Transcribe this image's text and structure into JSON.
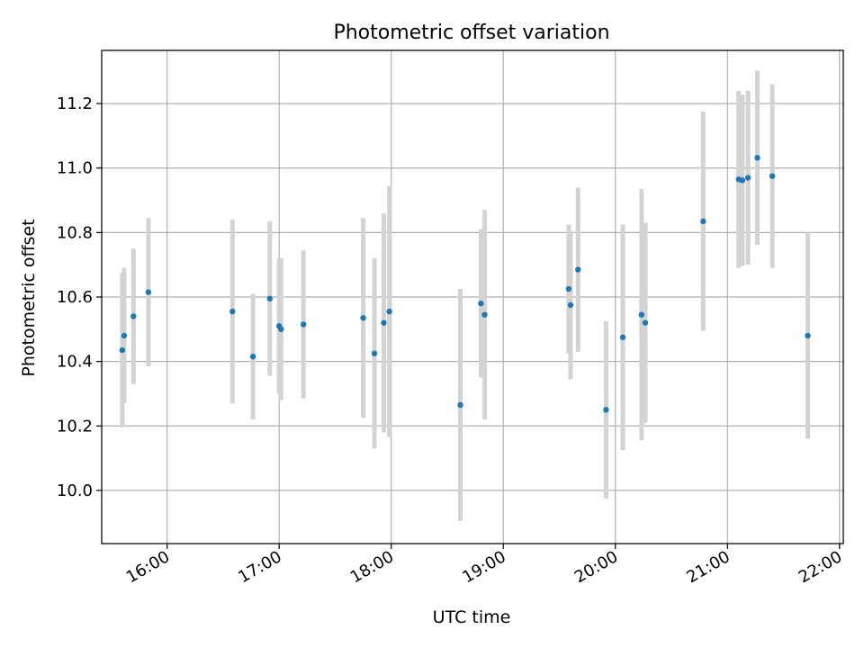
{
  "chart_data": {
    "type": "scatter",
    "title": "Photometric offset variation",
    "xlabel": "UTC time",
    "ylabel": "Photometric offset",
    "x_unit": "time of day (HH:MM, UTC)",
    "xlim": [
      "15:25",
      "22:02"
    ],
    "ylim": [
      9.835,
      11.365
    ],
    "grid": true,
    "x_ticks": [
      "16:00",
      "17:00",
      "18:00",
      "19:00",
      "20:00",
      "21:00",
      "22:00"
    ],
    "y_ticks": [
      "10.0",
      "10.2",
      "10.4",
      "10.6",
      "10.8",
      "11.0",
      "11.2"
    ],
    "errorbar_color": "#d3d3d3",
    "marker_color": "#1f77b4",
    "points": [
      {
        "x": "15:36",
        "y": 10.435,
        "yerr": 0.24
      },
      {
        "x": "15:37",
        "y": 10.48,
        "yerr": 0.21
      },
      {
        "x": "15:42",
        "y": 10.54,
        "yerr": 0.21
      },
      {
        "x": "15:50",
        "y": 10.615,
        "yerr": 0.23
      },
      {
        "x": "16:35",
        "y": 10.555,
        "yerr": 0.285
      },
      {
        "x": "16:46",
        "y": 10.415,
        "yerr": 0.195
      },
      {
        "x": "16:55",
        "y": 10.595,
        "yerr": 0.24
      },
      {
        "x": "17:00",
        "y": 10.51,
        "yerr": 0.21
      },
      {
        "x": "17:01",
        "y": 10.5,
        "yerr": 0.22
      },
      {
        "x": "17:13",
        "y": 10.515,
        "yerr": 0.23
      },
      {
        "x": "17:45",
        "y": 10.535,
        "yerr": 0.31
      },
      {
        "x": "17:51",
        "y": 10.425,
        "yerr": 0.295
      },
      {
        "x": "17:56",
        "y": 10.52,
        "yerr": 0.34
      },
      {
        "x": "17:59",
        "y": 10.555,
        "yerr": 0.39
      },
      {
        "x": "18:37",
        "y": 10.265,
        "yerr": 0.36
      },
      {
        "x": "18:48",
        "y": 10.58,
        "yerr": 0.23
      },
      {
        "x": "18:50",
        "y": 10.545,
        "yerr": 0.325
      },
      {
        "x": "19:35",
        "y": 10.625,
        "yerr": 0.2
      },
      {
        "x": "19:36",
        "y": 10.575,
        "yerr": 0.23
      },
      {
        "x": "19:40",
        "y": 10.685,
        "yerr": 0.255
      },
      {
        "x": "19:55",
        "y": 10.25,
        "yerr": 0.275
      },
      {
        "x": "20:04",
        "y": 10.475,
        "yerr": 0.35
      },
      {
        "x": "20:14",
        "y": 10.545,
        "yerr": 0.39
      },
      {
        "x": "20:16",
        "y": 10.52,
        "yerr": 0.31
      },
      {
        "x": "20:47",
        "y": 10.835,
        "yerr": 0.34
      },
      {
        "x": "21:06",
        "y": 10.965,
        "yerr": 0.275
      },
      {
        "x": "21:08",
        "y": 10.962,
        "yerr": 0.265
      },
      {
        "x": "21:11",
        "y": 10.97,
        "yerr": 0.27
      },
      {
        "x": "21:16",
        "y": 11.032,
        "yerr": 0.27
      },
      {
        "x": "21:24",
        "y": 10.975,
        "yerr": 0.285
      },
      {
        "x": "21:43",
        "y": 10.48,
        "yerr": 0.32
      }
    ]
  }
}
